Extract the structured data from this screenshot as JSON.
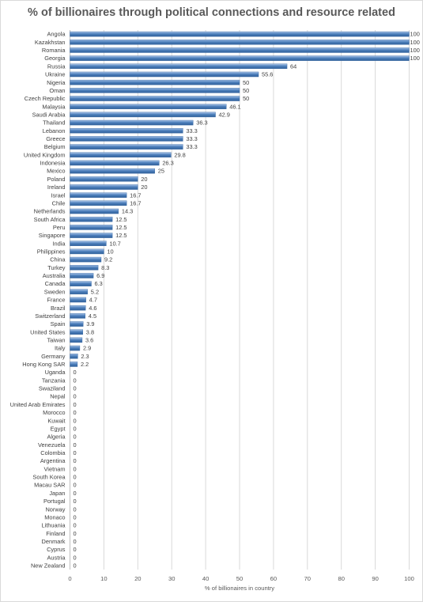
{
  "chart_data": {
    "type": "bar",
    "orientation": "horizontal",
    "title": "% of billionaires through political connections and resource related",
    "xlabel": "% of billionaires in country",
    "ylabel": "",
    "xlim": [
      0,
      100
    ],
    "xticks": [
      0,
      10,
      20,
      30,
      40,
      50,
      60,
      70,
      80,
      90,
      100
    ],
    "grid": true,
    "bar_color": "#4f81bd",
    "categories": [
      "Angola",
      "Kazakhstan",
      "Romania",
      "Georgia",
      "Russia",
      "Ukraine",
      "Nigeria",
      "Oman",
      "Czech Republic",
      "Malaysia",
      "Saudi Arabia",
      "Thailand",
      "Lebanon",
      "Greece",
      "Belgium",
      "United Kingdom",
      "Indonesia",
      "Mexico",
      "Poland",
      "Ireland",
      "Israel",
      "Chile",
      "Netherlands",
      "South Africa",
      "Peru",
      "Singapore",
      "India",
      "Philippines",
      "China",
      "Turkey",
      "Australia",
      "Canada",
      "Sweden",
      "France",
      "Brazil",
      "Switzerland",
      "Spain",
      "United States",
      "Taiwan",
      "Italy",
      "Germany",
      "Hong Kong SAR",
      "Uganda",
      "Tanzania",
      "Swaziland",
      "Nepal",
      "United Arab Emirates",
      "Morocco",
      "Kuwait",
      "Egypt",
      "Algeria",
      "Venezuela",
      "Colombia",
      "Argentina",
      "Vietnam",
      "South Korea",
      "Macau SAR",
      "Japan",
      "Portugal",
      "Norway",
      "Monaco",
      "Lithuania",
      "Finland",
      "Denmark",
      "Cyprus",
      "Austria",
      "New Zealand"
    ],
    "values": [
      100,
      100,
      100,
      100,
      64,
      55.6,
      50,
      50,
      50,
      46.1,
      42.9,
      36.3,
      33.3,
      33.3,
      33.3,
      29.8,
      26.3,
      25,
      20,
      20,
      16.7,
      16.7,
      14.3,
      12.5,
      12.5,
      12.5,
      10.7,
      10,
      9.2,
      8.3,
      6.9,
      6.3,
      5.2,
      4.7,
      4.6,
      4.5,
      3.9,
      3.8,
      3.6,
      2.9,
      2.3,
      2.2,
      0,
      0,
      0,
      0,
      0,
      0,
      0,
      0,
      0,
      0,
      0,
      0,
      0,
      0,
      0,
      0,
      0,
      0,
      0,
      0,
      0,
      0,
      0,
      0,
      0
    ]
  }
}
